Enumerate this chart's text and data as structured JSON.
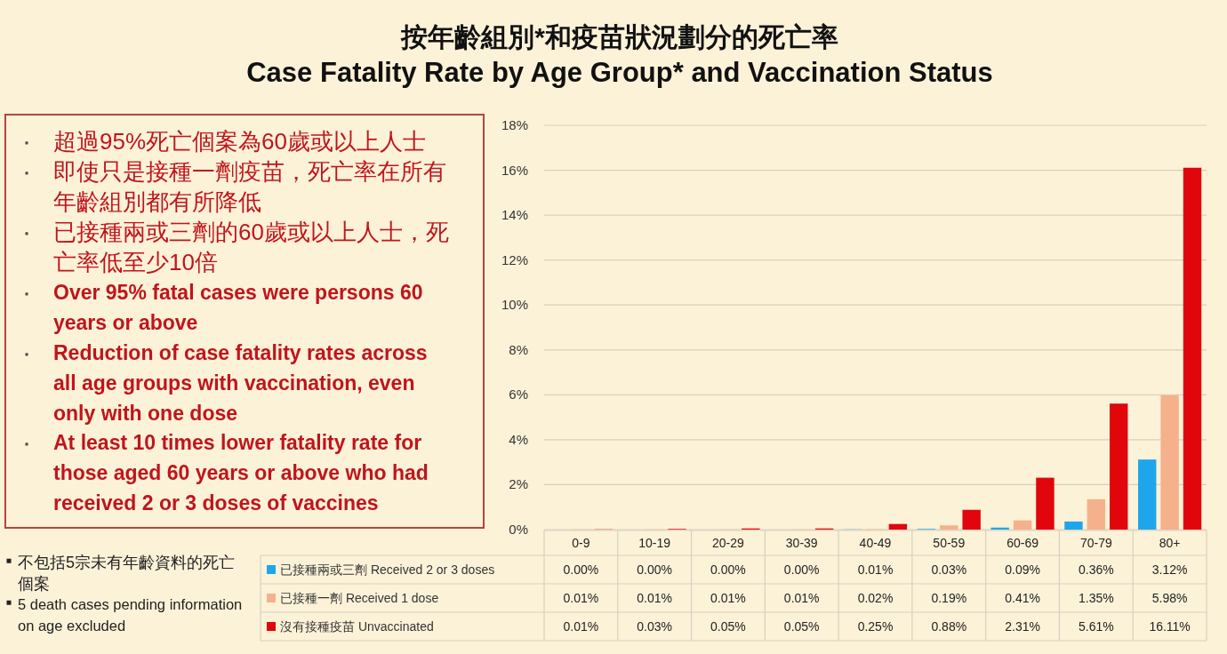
{
  "chart_data": {
    "type": "bar",
    "title": "按年齡組別*和疫苗狀況劃分的死亡率",
    "subtitle": "Case Fatality Rate by Age Group* and Vaccination Status",
    "categories": [
      "0-9",
      "10-19",
      "20-29",
      "30-39",
      "40-49",
      "50-59",
      "60-69",
      "70-79",
      "80+"
    ],
    "series": [
      {
        "name": "已接種兩或三劑 Received 2 or 3 doses",
        "color": "#1fa6ea",
        "values": [
          0,
          0,
          0,
          0,
          0.01,
          0.03,
          0.09,
          0.36,
          3.12
        ],
        "value_labels": [
          "0.00%",
          "0.00%",
          "0.00%",
          "0.00%",
          "0.01%",
          "0.03%",
          "0.09%",
          "0.36%",
          "3.12%"
        ]
      },
      {
        "name": "已接種一劑 Received 1 dose",
        "color": "#f5b18c",
        "values": [
          0.01,
          0.01,
          0.01,
          0.01,
          0.02,
          0.19,
          0.41,
          1.35,
          5.98
        ],
        "value_labels": [
          "0.01%",
          "0.01%",
          "0.01%",
          "0.01%",
          "0.02%",
          "0.19%",
          "0.41%",
          "1.35%",
          "5.98%"
        ]
      },
      {
        "name": "沒有接種疫苗 Unvaccinated",
        "color": "#e1060c",
        "values": [
          0.01,
          0.03,
          0.05,
          0.05,
          0.25,
          0.88,
          2.31,
          5.61,
          16.11
        ],
        "value_labels": [
          "0.01%",
          "0.03%",
          "0.05%",
          "0.05%",
          "0.25%",
          "0.88%",
          "2.31%",
          "5.61%",
          "16.11%"
        ]
      }
    ],
    "ylim": [
      0,
      18
    ],
    "yticks": [
      {
        "value": 0,
        "label": "0%"
      },
      {
        "value": 2,
        "label": "2%"
      },
      {
        "value": 4,
        "label": "4%"
      },
      {
        "value": 6,
        "label": "6%"
      },
      {
        "value": 8,
        "label": "8%"
      },
      {
        "value": 10,
        "label": "10%"
      },
      {
        "value": 12,
        "label": "12%"
      },
      {
        "value": 14,
        "label": "14%"
      },
      {
        "value": 16,
        "label": "16%"
      },
      {
        "value": 18,
        "label": "18%"
      }
    ],
    "grid": "y",
    "legend": "bottom",
    "annotations": [
      "超過95%死亡個案為60歲或以上人士",
      "即使只是接種一劑疫苗，死亡率在所有年齡組別都有所降低",
      "已接種兩或三劑的60歲或以上人士，死亡率低至少10倍",
      "Over 95% fatal cases were persons 60 years or above",
      "Reduction of case fatality rates across all age groups with vaccination, even only with one dose",
      "At least 10 times lower fatality rate for those aged 60 years or above who had received 2 or 3 doses of vaccines",
      "不包括5宗未有年齡資料的死亡個案",
      "5 death cases pending information on age excluded"
    ]
  }
}
